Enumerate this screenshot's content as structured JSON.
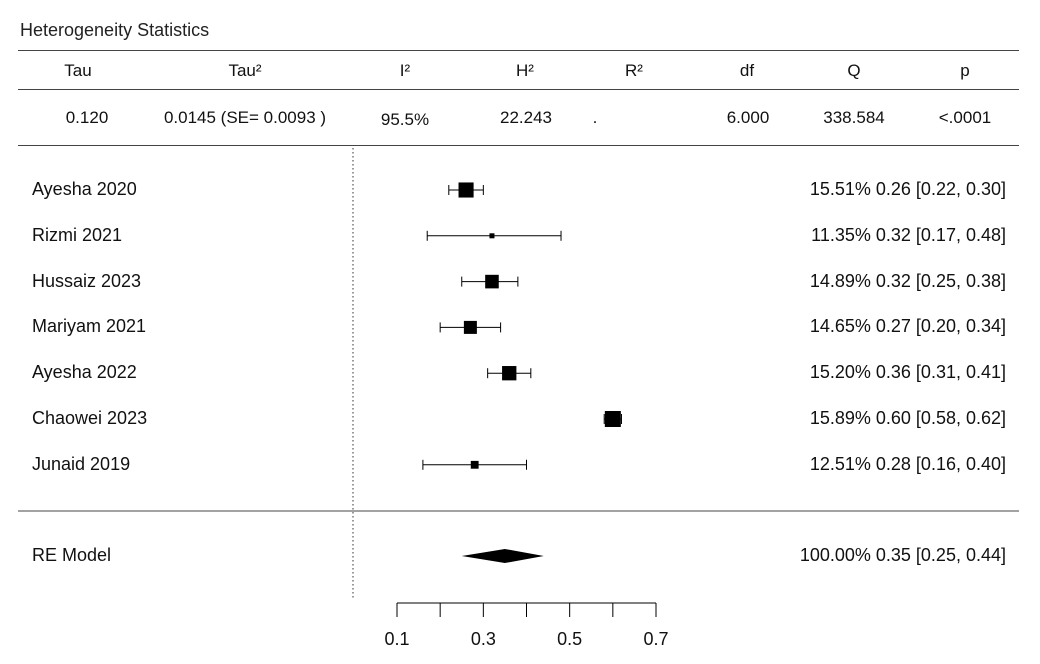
{
  "heterogeneity": {
    "title": "Heterogeneity Statistics",
    "headers": [
      "Tau",
      "Tau²",
      "I²",
      "H²",
      "R²",
      "df",
      "Q",
      "p"
    ],
    "values": [
      "0.120",
      "0.0145 (SE= 0.0093 )",
      "95.5%",
      "22.243",
      ".",
      "6.000",
      "338.584",
      "<.0001"
    ]
  },
  "chart_data": {
    "type": "forest",
    "studies": [
      {
        "label": "Ayesha 2020",
        "weight": "15.51%",
        "estimate": 0.26,
        "ci": [
          0.22,
          0.3
        ],
        "text": "0.26 [0.22, 0.30]"
      },
      {
        "label": "Rizmi 2021",
        "weight": "11.35%",
        "estimate": 0.32,
        "ci": [
          0.17,
          0.48
        ],
        "text": "0.32 [0.17, 0.48]"
      },
      {
        "label": "Hussaiz 2023",
        "weight": "14.89%",
        "estimate": 0.32,
        "ci": [
          0.25,
          0.38
        ],
        "text": "0.32 [0.25, 0.38]"
      },
      {
        "label": "Mariyam 2021",
        "weight": "14.65%",
        "estimate": 0.27,
        "ci": [
          0.2,
          0.34
        ],
        "text": "0.27 [0.20, 0.34]"
      },
      {
        "label": "Ayesha 2022",
        "weight": "15.20%",
        "estimate": 0.36,
        "ci": [
          0.31,
          0.41
        ],
        "text": "0.36 [0.31, 0.41]"
      },
      {
        "label": "Chaowei 2023",
        "weight": "15.89%",
        "estimate": 0.6,
        "ci": [
          0.58,
          0.62
        ],
        "text": "0.60 [0.58, 0.62]"
      },
      {
        "label": "Junaid 2019",
        "weight": "12.51%",
        "estimate": 0.28,
        "ci": [
          0.16,
          0.4
        ],
        "text": "0.28 [0.16, 0.40]"
      }
    ],
    "summary": {
      "label": "RE Model",
      "weight": "100.00%",
      "estimate": 0.35,
      "ci": [
        0.25,
        0.44
      ],
      "text": "0.35 [0.25, 0.44]"
    },
    "x_ticks": [
      0.1,
      0.3,
      0.5,
      0.7
    ],
    "x_tick_labels": [
      "0.1",
      "0.3",
      "0.5",
      "0.7"
    ],
    "x_minor_ticks": [
      0.1,
      0.2,
      0.3,
      0.4,
      0.5,
      0.6,
      0.7
    ],
    "xlim": [
      0.1,
      0.7
    ],
    "reference_line": "dotted",
    "square_color": "#000000",
    "line_color": "#000000"
  }
}
